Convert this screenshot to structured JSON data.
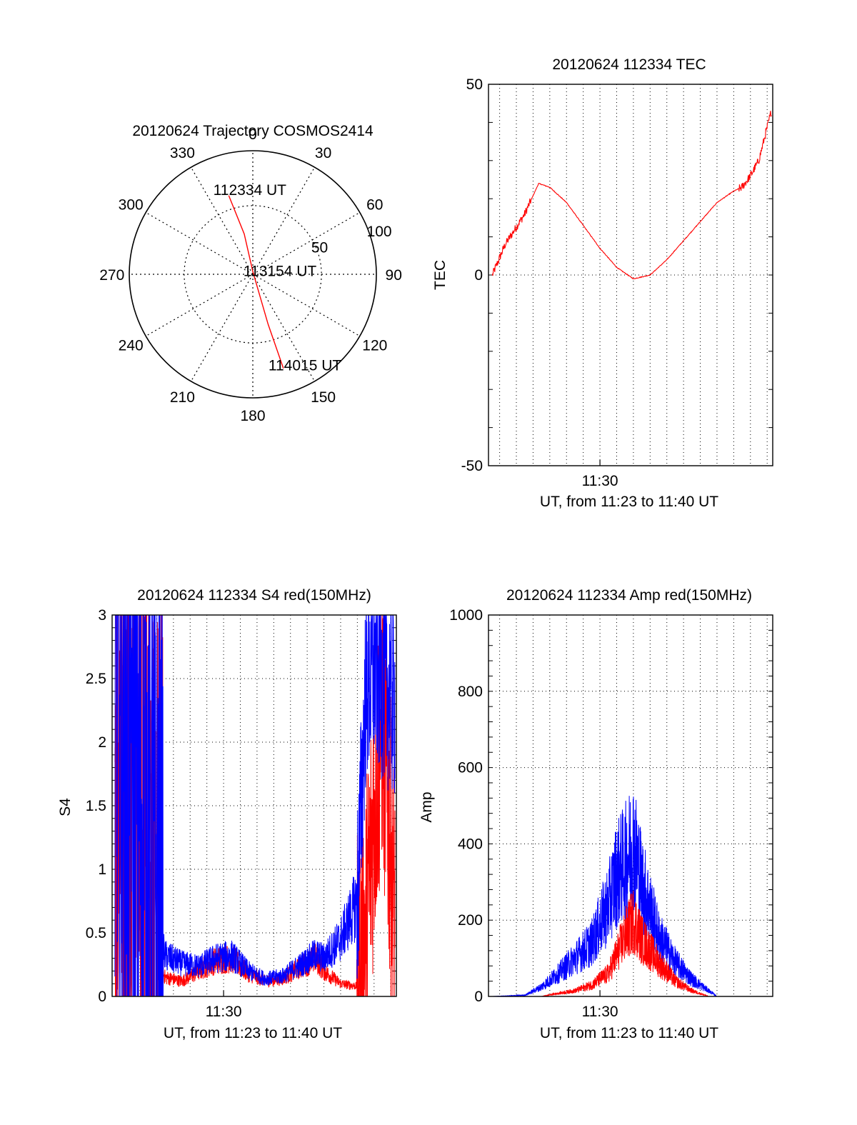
{
  "chart_data": [
    {
      "type": "polar",
      "title": "20120624 Trajectory COSMOS2414",
      "azimuth_labels": [
        "0",
        "30",
        "60",
        "90",
        "120",
        "150",
        "180",
        "210",
        "240",
        "270",
        "300",
        "330"
      ],
      "radial_labels": [
        "50",
        "100"
      ],
      "rlim": [
        0,
        90
      ],
      "grid": true,
      "series": [
        {
          "color": "#ff0000",
          "points": [
            {
              "az": 343,
              "r": 60
            },
            {
              "az": 348,
              "r": 30
            },
            {
              "az": 0,
              "r": 2
            },
            {
              "az": 163,
              "r": 38
            },
            {
              "az": 162,
              "r": 72
            }
          ]
        }
      ],
      "annotations": [
        {
          "text": "112334 UT",
          "az": 358,
          "r": 62
        },
        {
          "text": "113154 UT",
          "az": 82,
          "r": 20
        },
        {
          "text": "114015 UT",
          "az": 150,
          "r": 76
        }
      ]
    },
    {
      "type": "line",
      "title": "20120624 112334 TEC",
      "xlabel": "UT, from 11:23 to 11:40 UT",
      "ylabel": "TEC",
      "xlim": [
        "11:23:20",
        "11:40:20"
      ],
      "ylim": [
        -50,
        50
      ],
      "xticks": [
        {
          "t": "11:30:00",
          "label": "11:30"
        }
      ],
      "yticks": [
        -50,
        0,
        50
      ],
      "grid": true,
      "series": [
        {
          "color": "#ff0000",
          "noisy_until": 0.15,
          "noisy_after": 0.88,
          "x": [
            "11:23:34",
            "11:24:20",
            "11:25:30",
            "11:26:20",
            "11:27:00",
            "11:28:00",
            "11:29:00",
            "11:30:00",
            "11:31:00",
            "11:32:00",
            "11:33:00",
            "11:34:00",
            "11:35:00",
            "11:36:00",
            "11:37:00",
            "11:38:00",
            "11:38:30",
            "11:39:00",
            "11:39:30",
            "11:40:15"
          ],
          "y": [
            0,
            8,
            16,
            24,
            23,
            19,
            13,
            7,
            2,
            -1,
            0,
            4,
            9,
            14,
            19,
            22,
            23,
            26,
            30,
            43
          ]
        }
      ]
    },
    {
      "type": "line",
      "title": "20120624 112334 S4 red(150MHz)",
      "xlabel": "UT, from 11:23 to 11:40 UT",
      "ylabel": "S4",
      "xlim": [
        "11:23:20",
        "11:40:20"
      ],
      "ylim": [
        0,
        3
      ],
      "xticks": [
        {
          "t": "11:30:00",
          "label": "11:30"
        }
      ],
      "yticks": [
        0,
        0.5,
        1,
        1.5,
        2,
        2.5,
        3
      ],
      "grid": true,
      "series": [
        {
          "color": "#ff0000",
          "x": [
            "11:23:30",
            "11:24:30",
            "11:26:00",
            "11:26:30",
            "11:27:30",
            "11:28:30",
            "11:29:30",
            "11:30:30",
            "11:31:30",
            "11:32:30",
            "11:33:30",
            "11:34:30",
            "11:35:30",
            "11:36:00",
            "11:37:00",
            "11:38:00",
            "11:38:30",
            "11:39:00",
            "11:39:30",
            "11:40:15"
          ],
          "y": [
            2.0,
            2.5,
            0.3,
            0.15,
            0.12,
            0.2,
            0.28,
            0.3,
            0.18,
            0.12,
            0.14,
            0.22,
            0.3,
            0.2,
            0.1,
            0.08,
            0.5,
            1.5,
            2.2,
            0.6
          ]
        },
        {
          "color": "#0000ff",
          "x": [
            "11:23:30",
            "11:24:30",
            "11:26:00",
            "11:26:30",
            "11:27:30",
            "11:28:30",
            "11:29:30",
            "11:30:30",
            "11:31:30",
            "11:32:30",
            "11:33:30",
            "11:34:30",
            "11:35:30",
            "11:36:00",
            "11:37:00",
            "11:38:00",
            "11:38:30",
            "11:39:00",
            "11:39:30",
            "11:40:15"
          ],
          "y": [
            2.2,
            2.0,
            0.6,
            0.32,
            0.26,
            0.24,
            0.3,
            0.32,
            0.2,
            0.14,
            0.16,
            0.24,
            0.33,
            0.3,
            0.45,
            0.75,
            2.4,
            2.6,
            2.5,
            2.3
          ]
        }
      ]
    },
    {
      "type": "line",
      "title": "20120624 112334 Amp red(150MHz)",
      "xlabel": "UT, from 11:23 to 11:40 UT",
      "ylabel": "Amp",
      "xlim": [
        "11:23:20",
        "11:40:20"
      ],
      "ylim": [
        0,
        1000
      ],
      "xticks": [
        {
          "t": "11:30:00",
          "label": "11:30"
        }
      ],
      "yticks": [
        0,
        200,
        400,
        600,
        800,
        1000
      ],
      "grid": true,
      "series": [
        {
          "color": "#0000ff",
          "x": [
            "11:23:34",
            "11:25:30",
            "11:26:30",
            "11:27:30",
            "11:28:30",
            "11:29:30",
            "11:30:30",
            "11:31:00",
            "11:31:30",
            "11:32:00",
            "11:32:30",
            "11:33:30",
            "11:34:30",
            "11:35:30",
            "11:36:30",
            "11:37:00",
            "11:40:15"
          ],
          "y": [
            0,
            3,
            25,
            60,
            100,
            140,
            240,
            320,
            350,
            400,
            300,
            160,
            90,
            45,
            15,
            0,
            0
          ]
        },
        {
          "color": "#ff0000",
          "x": [
            "11:23:34",
            "11:26:30",
            "11:27:30",
            "11:28:30",
            "11:29:30",
            "11:30:30",
            "11:31:00",
            "11:31:30",
            "11:32:00",
            "11:32:30",
            "11:33:30",
            "11:34:30",
            "11:35:30",
            "11:36:30",
            "11:40:15"
          ],
          "y": [
            0,
            0,
            8,
            15,
            30,
            60,
            110,
            160,
            200,
            150,
            90,
            40,
            15,
            0,
            0
          ]
        }
      ]
    }
  ]
}
